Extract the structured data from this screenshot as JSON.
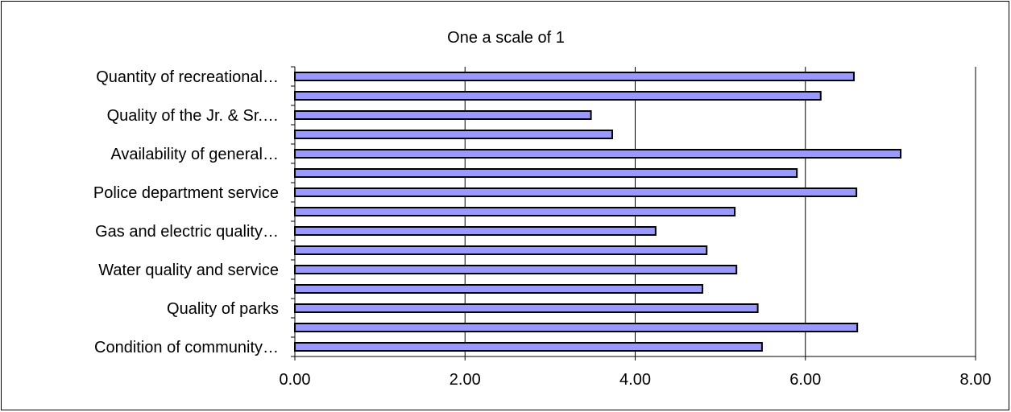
{
  "chart_data": {
    "type": "bar",
    "orientation": "horizontal",
    "title": "One a scale of 1",
    "xlabel": "",
    "ylabel": "",
    "categories": [
      "Quantity of recreational…",
      "",
      "Quality of the Jr. & Sr.…",
      "",
      "Availability of general…",
      "",
      "Police department service",
      "",
      "Gas and electric quality…",
      "",
      "Water quality and service",
      "",
      "Quality of parks",
      "",
      "Condition of community…"
    ],
    "values": [
      6.57,
      6.18,
      3.48,
      3.73,
      7.12,
      5.9,
      6.6,
      5.17,
      4.24,
      4.84,
      5.19,
      4.79,
      5.44,
      6.61,
      5.49
    ],
    "xlim": [
      0,
      8
    ],
    "xticks": [
      "0.00",
      "2.00",
      "4.00",
      "6.00",
      "8.00"
    ],
    "grid": true,
    "bar_color": "#9999ff",
    "bar_edge_color": "#000000"
  }
}
